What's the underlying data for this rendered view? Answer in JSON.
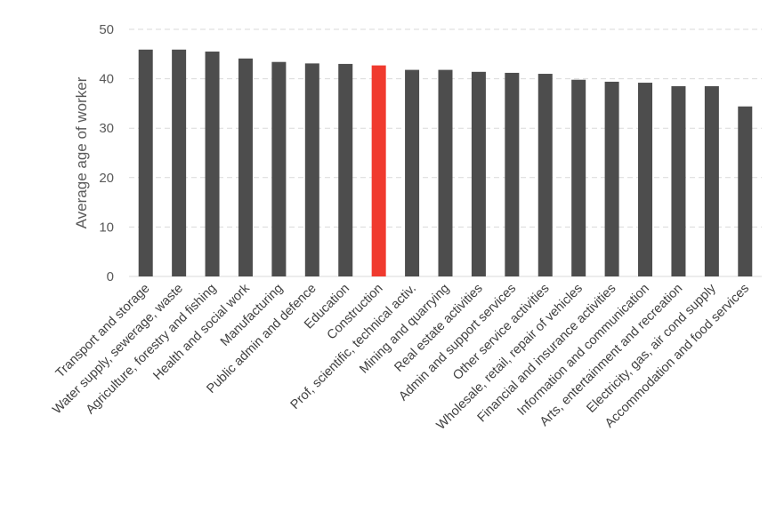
{
  "chart_data": {
    "type": "bar",
    "title": "",
    "xlabel": "",
    "ylabel": "Average age of worker",
    "ylim": [
      0,
      50
    ],
    "yticks": [
      0,
      10,
      20,
      30,
      40,
      50
    ],
    "grid": true,
    "categories": [
      "Transport and storage",
      "Water supply, sewerage, waste",
      "Agriculture, forestry and fishing",
      "Health and social work",
      "Manufacturing",
      "Public admin and defence",
      "Education",
      "Construction",
      "Prof, scientific, technical activ.",
      "Mining and quarrying",
      "Real estate activities",
      "Admin and support services",
      "Other service activities",
      "Wholesale, retail, repair of vehicles",
      "Financial and insurance activities",
      "Information and communication",
      "Arts, entertainment and recreation",
      "Electricity, gas, air cond supply",
      "Accommodation and food services"
    ],
    "values": [
      45.9,
      45.9,
      45.5,
      44.1,
      43.4,
      43.1,
      43.0,
      42.7,
      41.8,
      41.8,
      41.4,
      41.2,
      41.0,
      39.8,
      39.4,
      39.2,
      38.5,
      38.5,
      34.4
    ],
    "highlight_category": "Construction",
    "colors": {
      "bar": "#4d4d4d",
      "highlight": "#f03a2e",
      "grid": "#d9d9d9"
    }
  }
}
